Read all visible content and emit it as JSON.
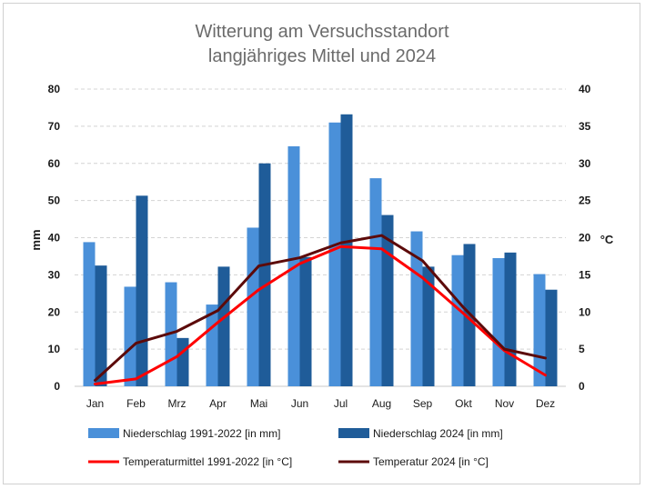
{
  "chart_data": {
    "type": "bar",
    "title_line1": "Witterung am Versuchsstandort",
    "title_line2": "langjähriges Mittel und 2024",
    "ylabel_left": "mm",
    "ylabel_right": "°C",
    "ylim_left": [
      0,
      80
    ],
    "ylim_right": [
      0,
      40
    ],
    "yticks_left": [
      "0",
      "10",
      "20",
      "30",
      "40",
      "50",
      "60",
      "70",
      "80"
    ],
    "yticks_right": [
      "0",
      "5",
      "10",
      "15",
      "20",
      "25",
      "30",
      "35",
      "40"
    ],
    "grid": true,
    "legend_position": "bottom",
    "categories": [
      "Jan",
      "Feb",
      "Mrz",
      "Apr",
      "Mai",
      "Jun",
      "Jul",
      "Aug",
      "Sep",
      "Okt",
      "Nov",
      "Dez"
    ],
    "series": [
      {
        "name": "Niederschlag 1991-2022 [in mm]",
        "kind": "bar",
        "axis": "left",
        "color": "#4a90d9",
        "values": [
          38.8,
          26.8,
          28.0,
          22.0,
          42.7,
          64.6,
          71.0,
          56.0,
          41.7,
          35.3,
          34.5,
          30.2
        ]
      },
      {
        "name": "Niederschlag 2024 [in mm]",
        "kind": "bar",
        "axis": "left",
        "color": "#1f5c99",
        "values": [
          32.5,
          51.3,
          13.0,
          32.2,
          60.0,
          34.8,
          73.2,
          46.1,
          32.2,
          38.3,
          36.0,
          26.0
        ]
      },
      {
        "name": "Temperaturmittel 1991-2022 [in °C]",
        "kind": "line",
        "axis": "right",
        "color": "#ff0000",
        "values": [
          0.3,
          1.0,
          4.0,
          8.6,
          13.0,
          16.5,
          18.8,
          18.5,
          14.6,
          9.8,
          4.8,
          1.5
        ]
      },
      {
        "name": "Temperatur 2024 [in °C]",
        "kind": "line",
        "axis": "right",
        "color": "#5c0a0a",
        "values": [
          0.8,
          5.8,
          7.4,
          10.2,
          16.2,
          17.3,
          19.3,
          20.3,
          16.9,
          10.6,
          5.0,
          3.8
        ]
      }
    ]
  }
}
